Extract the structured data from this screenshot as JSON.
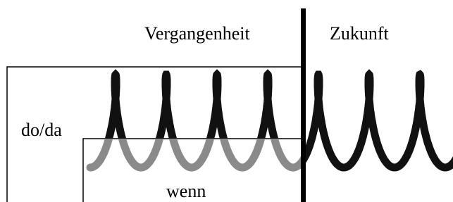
{
  "labels": {
    "past": "Vergangenheit",
    "future": "Zukunft",
    "do_da": "do/da",
    "wenn": "wenn"
  }
}
